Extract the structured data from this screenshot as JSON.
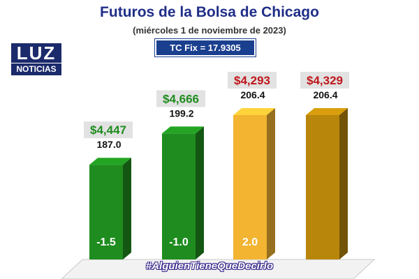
{
  "title": "Futuros de la Bolsa de Chicago",
  "subtitle": "(miércoles 1 de noviembre de 2023)",
  "tc_fix": "TC Fix = 17.9305",
  "logo": {
    "top": "LUZ",
    "bottom": "NOTICIAS"
  },
  "hashtag": "#AlguienTieneQueDecirlo",
  "colors": {
    "title": "#1f2e88",
    "green": "#1e8c1e",
    "gold": "#f2b431",
    "olive": "#b8860b",
    "price_green": "#1e8c1e",
    "price_red": "#c0161b"
  },
  "chart_data": {
    "type": "bar",
    "title": "Futuros de la Bolsa de Chicago",
    "xlabel": "",
    "ylabel": "",
    "ylim": [
      0,
      230
    ],
    "values": [
      187.0,
      199.2,
      206.4,
      206.4
    ],
    "value_labels": [
      "187.0",
      "199.2",
      "206.4",
      "206.4"
    ],
    "changes": [
      "-1.5",
      "-1.0",
      "2.0",
      ""
    ],
    "prices": [
      "$4,447",
      "$4,666",
      "$4,293",
      "$4,329"
    ],
    "price_colors": [
      "#1e8c1e",
      "#1e8c1e",
      "#c0161b",
      "#c0161b"
    ],
    "bar_colors": [
      "#1e8c1e",
      "#1e8c1e",
      "#f2b431",
      "#b8860b"
    ]
  }
}
